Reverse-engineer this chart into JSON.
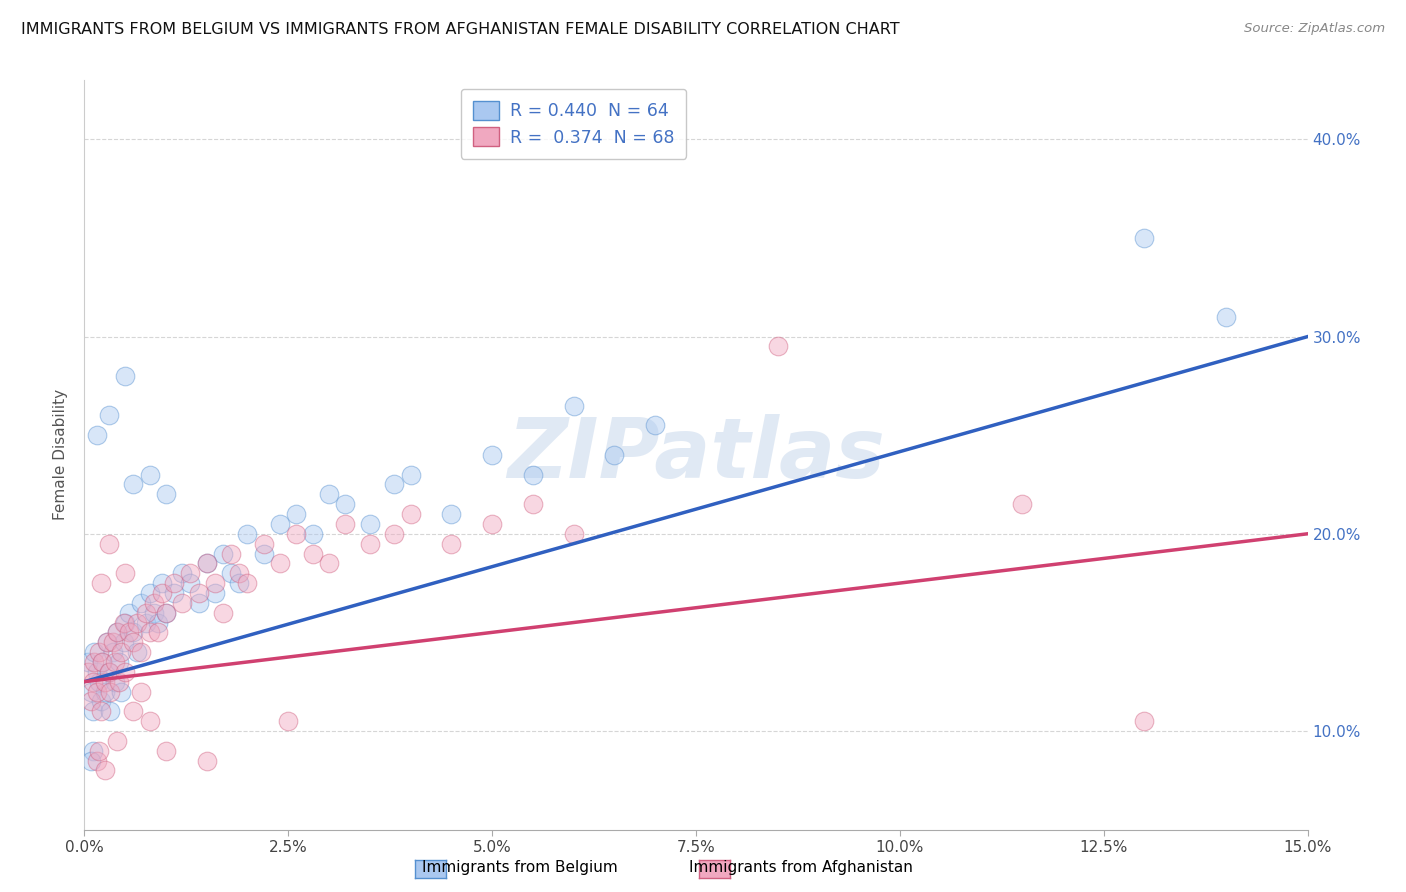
{
  "title": "IMMIGRANTS FROM BELGIUM VS IMMIGRANTS FROM AFGHANISTAN FEMALE DISABILITY CORRELATION CHART",
  "source": "Source: ZipAtlas.com",
  "ylabel": "Female Disability",
  "xlim": [
    0.0,
    15.0
  ],
  "ylim": [
    5.0,
    43.0
  ],
  "yticks": [
    10.0,
    20.0,
    30.0,
    40.0
  ],
  "xticks": [
    0.0,
    2.5,
    5.0,
    7.5,
    10.0,
    12.5,
    15.0
  ],
  "belgium_color": "#aac8f0",
  "belgium_edge": "#5590d0",
  "afghanistan_color": "#f0a8c0",
  "afghanistan_edge": "#d06080",
  "belgium_line_color": "#3060c0",
  "afghanistan_line_color": "#d04070",
  "R_belgium": 0.44,
  "N_belgium": 64,
  "R_afghanistan": 0.374,
  "N_afghanistan": 68,
  "bel_line_x0": 0.0,
  "bel_line_y0": 12.5,
  "bel_line_x1": 15.0,
  "bel_line_y1": 30.0,
  "afg_line_x0": 0.0,
  "afg_line_y0": 12.5,
  "afg_line_x1": 15.0,
  "afg_line_y1": 20.0,
  "belgium_scatter": [
    [
      0.05,
      13.5
    ],
    [
      0.08,
      12.0
    ],
    [
      0.1,
      11.0
    ],
    [
      0.12,
      14.0
    ],
    [
      0.15,
      13.0
    ],
    [
      0.18,
      12.5
    ],
    [
      0.2,
      11.5
    ],
    [
      0.22,
      13.5
    ],
    [
      0.25,
      12.0
    ],
    [
      0.28,
      14.5
    ],
    [
      0.3,
      13.0
    ],
    [
      0.32,
      11.0
    ],
    [
      0.35,
      14.0
    ],
    [
      0.38,
      12.5
    ],
    [
      0.4,
      15.0
    ],
    [
      0.42,
      13.5
    ],
    [
      0.45,
      12.0
    ],
    [
      0.48,
      14.5
    ],
    [
      0.5,
      15.5
    ],
    [
      0.55,
      16.0
    ],
    [
      0.6,
      15.0
    ],
    [
      0.65,
      14.0
    ],
    [
      0.7,
      16.5
    ],
    [
      0.75,
      15.5
    ],
    [
      0.8,
      17.0
    ],
    [
      0.85,
      16.0
    ],
    [
      0.9,
      15.5
    ],
    [
      0.95,
      17.5
    ],
    [
      1.0,
      16.0
    ],
    [
      1.1,
      17.0
    ],
    [
      1.2,
      18.0
    ],
    [
      1.3,
      17.5
    ],
    [
      1.4,
      16.5
    ],
    [
      1.5,
      18.5
    ],
    [
      1.6,
      17.0
    ],
    [
      1.7,
      19.0
    ],
    [
      1.8,
      18.0
    ],
    [
      1.9,
      17.5
    ],
    [
      2.0,
      20.0
    ],
    [
      2.2,
      19.0
    ],
    [
      2.4,
      20.5
    ],
    [
      2.6,
      21.0
    ],
    [
      2.8,
      20.0
    ],
    [
      3.0,
      22.0
    ],
    [
      3.2,
      21.5
    ],
    [
      3.5,
      20.5
    ],
    [
      3.8,
      22.5
    ],
    [
      4.0,
      23.0
    ],
    [
      4.5,
      21.0
    ],
    [
      5.0,
      24.0
    ],
    [
      5.5,
      23.0
    ],
    [
      6.0,
      26.5
    ],
    [
      6.5,
      24.0
    ],
    [
      7.0,
      25.5
    ],
    [
      0.3,
      26.0
    ],
    [
      0.5,
      28.0
    ],
    [
      0.15,
      25.0
    ],
    [
      0.6,
      22.5
    ],
    [
      0.8,
      23.0
    ],
    [
      1.0,
      22.0
    ],
    [
      0.1,
      9.0
    ],
    [
      0.08,
      8.5
    ],
    [
      13.0,
      35.0
    ],
    [
      14.0,
      31.0
    ]
  ],
  "afghanistan_scatter": [
    [
      0.05,
      13.0
    ],
    [
      0.08,
      11.5
    ],
    [
      0.1,
      12.5
    ],
    [
      0.12,
      13.5
    ],
    [
      0.15,
      12.0
    ],
    [
      0.18,
      14.0
    ],
    [
      0.2,
      11.0
    ],
    [
      0.22,
      13.5
    ],
    [
      0.25,
      12.5
    ],
    [
      0.28,
      14.5
    ],
    [
      0.3,
      13.0
    ],
    [
      0.32,
      12.0
    ],
    [
      0.35,
      14.5
    ],
    [
      0.38,
      13.5
    ],
    [
      0.4,
      15.0
    ],
    [
      0.42,
      12.5
    ],
    [
      0.45,
      14.0
    ],
    [
      0.48,
      15.5
    ],
    [
      0.5,
      13.0
    ],
    [
      0.55,
      15.0
    ],
    [
      0.6,
      14.5
    ],
    [
      0.65,
      15.5
    ],
    [
      0.7,
      14.0
    ],
    [
      0.75,
      16.0
    ],
    [
      0.8,
      15.0
    ],
    [
      0.85,
      16.5
    ],
    [
      0.9,
      15.0
    ],
    [
      0.95,
      17.0
    ],
    [
      1.0,
      16.0
    ],
    [
      1.1,
      17.5
    ],
    [
      1.2,
      16.5
    ],
    [
      1.3,
      18.0
    ],
    [
      1.4,
      17.0
    ],
    [
      1.5,
      18.5
    ],
    [
      1.6,
      17.5
    ],
    [
      1.7,
      16.0
    ],
    [
      1.8,
      19.0
    ],
    [
      1.9,
      18.0
    ],
    [
      2.0,
      17.5
    ],
    [
      2.2,
      19.5
    ],
    [
      2.4,
      18.5
    ],
    [
      2.6,
      20.0
    ],
    [
      2.8,
      19.0
    ],
    [
      3.0,
      18.5
    ],
    [
      3.2,
      20.5
    ],
    [
      3.5,
      19.5
    ],
    [
      3.8,
      20.0
    ],
    [
      4.0,
      21.0
    ],
    [
      4.5,
      19.5
    ],
    [
      5.0,
      20.5
    ],
    [
      5.5,
      21.5
    ],
    [
      6.0,
      20.0
    ],
    [
      0.3,
      19.5
    ],
    [
      0.5,
      18.0
    ],
    [
      0.2,
      17.5
    ],
    [
      0.15,
      8.5
    ],
    [
      0.18,
      9.0
    ],
    [
      0.25,
      8.0
    ],
    [
      0.4,
      9.5
    ],
    [
      1.0,
      9.0
    ],
    [
      1.5,
      8.5
    ],
    [
      2.5,
      10.5
    ],
    [
      8.5,
      29.5
    ],
    [
      11.5,
      21.5
    ],
    [
      13.0,
      10.5
    ],
    [
      0.6,
      11.0
    ],
    [
      0.7,
      12.0
    ],
    [
      0.8,
      10.5
    ]
  ],
  "watermark_text": "ZIPatlas",
  "background_color": "#ffffff",
  "grid_color": "#cccccc",
  "marker_size": 180,
  "marker_alpha": 0.45
}
